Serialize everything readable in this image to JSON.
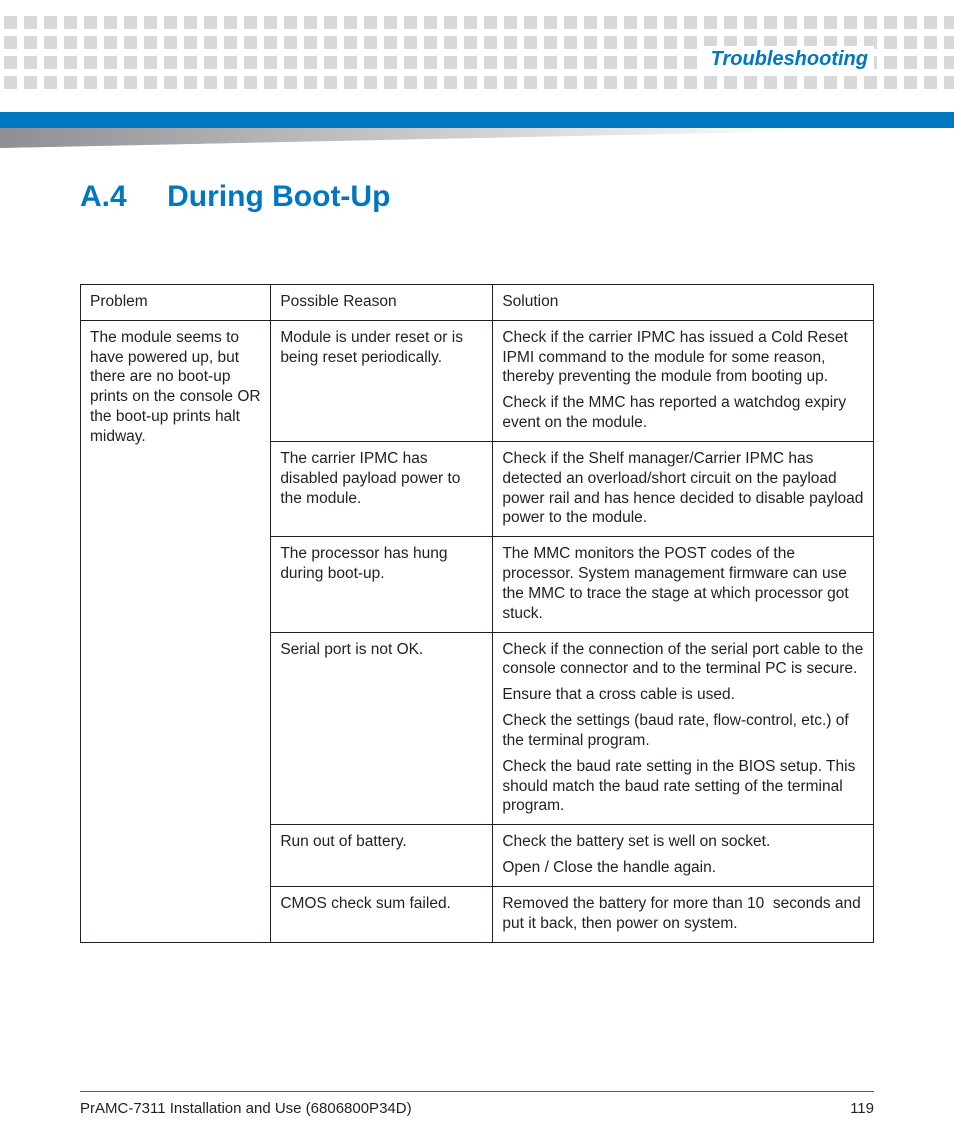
{
  "colors": {
    "accent": "#0077c0",
    "dot": "#d7d8d9",
    "text": "#231f20",
    "page_bg": "#ffffff",
    "table_border": "#231f20"
  },
  "header": {
    "running_title": "Troubleshooting"
  },
  "section": {
    "number": "A.4",
    "title": "During Boot-Up"
  },
  "table": {
    "type": "table",
    "column_widths_pct": [
      24,
      28,
      48
    ],
    "columns": [
      "Problem",
      "Possible Reason",
      "Solution"
    ],
    "body": [
      {
        "problem": "The module seems to have powered up, but there are no boot-up prints on the console OR the boot-up prints halt midway.",
        "rows": [
          {
            "reason": "Module is under reset or is being reset periodically.",
            "solution": [
              "Check if the carrier IPMC has issued a Cold Reset IPMI command to the module for some reason, thereby preventing the module from booting up.",
              "Check if the MMC has reported a watchdog expiry event on the module."
            ]
          },
          {
            "reason": "The carrier IPMC has disabled payload power to the module.",
            "solution": [
              "Check if the Shelf manager/Carrier IPMC has detected an overload/short circuit on the payload power rail and has hence decided to disable payload power to the module."
            ]
          },
          {
            "reason": "The processor has hung during boot-up.",
            "solution": [
              "The MMC monitors the POST codes of the processor. System management firmware can use the MMC to trace the stage at which processor got stuck."
            ]
          },
          {
            "reason": "Serial port is not OK.",
            "solution": [
              "Check if the connection of the serial port cable to the console connector and to the terminal PC is secure.",
              "Ensure that a cross cable is used.",
              "Check the settings (baud rate, flow-control, etc.) of the terminal program.",
              "Check the baud rate setting in the BIOS setup. This should match the baud rate setting of the terminal program."
            ]
          },
          {
            "reason": "Run out of battery.",
            "solution": [
              "Check the battery set is well on socket.",
              "Open / Close the handle again."
            ]
          },
          {
            "reason": "CMOS check sum failed.",
            "solution": [
              "Removed the battery for more than 10  seconds and put it back, then power on system."
            ]
          }
        ]
      }
    ]
  },
  "footer": {
    "doc_title": "PrAMC-7311 Installation and Use (6806800P34D)",
    "page_number": "119"
  }
}
